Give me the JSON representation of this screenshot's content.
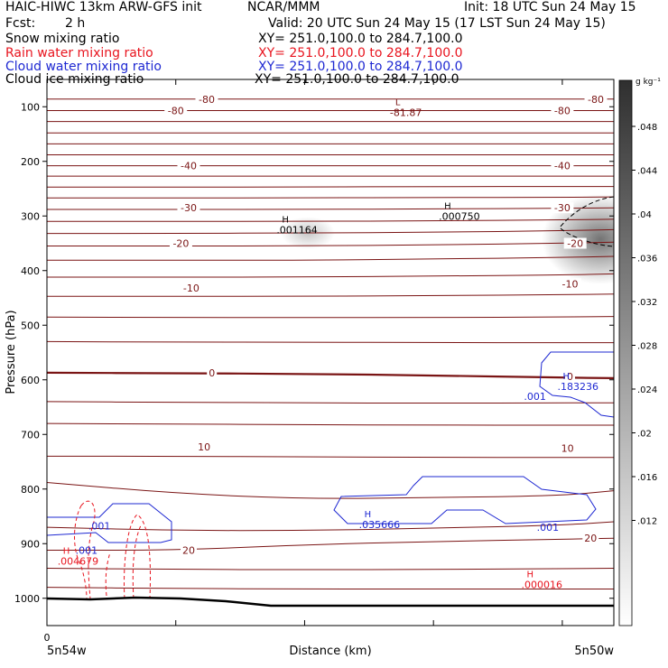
{
  "header": {
    "model": "HAIC-HIWC 13km ARW-GFS init",
    "org": "NCAR/MMM",
    "init": "Init: 18 UTC Sun 24 May 15",
    "fcst_label": "Fcst:",
    "fcst_value": "2 h",
    "valid": "Valid: 20 UTC Sun 24 May 15 (17 LST Sun 24 May 15)",
    "legend": [
      {
        "name": "Snow mixing ratio",
        "xy": "XY= 251.0,100.0 to 284.7,100.0",
        "color": "#000000"
      },
      {
        "name": "Rain water mixing ratio",
        "xy": "XY= 251.0,100.0 to 284.7,100.0",
        "color": "#e8141e"
      },
      {
        "name": "Cloud water mixing ratio",
        "xy": "XY= 251.0,100.0 to 284.7,100.0",
        "color": "#1e28d2"
      },
      {
        "name": "Cloud ice mixing ratio",
        "xy": "XY= 251.0,100.0 to 284.7,100.0",
        "color": "#000000"
      }
    ]
  },
  "colors": {
    "temperature": "#7a1414",
    "rain": "#e8141e",
    "cloud_water": "#1e28d2",
    "ice": "#000000",
    "terrain": "#000000"
  },
  "chart_data": {
    "type": "cross-section",
    "xlabel": "Distance (km)",
    "ylabel": "Pressure (hPa)",
    "x_start_label": "5n54w",
    "x_end_label": "5n50w",
    "x_tick_label": "0",
    "x_range": [
      0,
      220
    ],
    "x_ticks": [
      0,
      50,
      100,
      150,
      200
    ],
    "y_range": [
      1050,
      50
    ],
    "y_ticks": [
      100,
      200,
      300,
      400,
      500,
      600,
      700,
      800,
      900,
      1000
    ],
    "colorbar": {
      "unit": "g kg⁻¹",
      "ticks": [
        ".048",
        ".044",
        ".04",
        ".036",
        ".032",
        ".028",
        ".024",
        ".02",
        ".016",
        ".012"
      ],
      "color_from": "#ffffff",
      "color_to": "#2f2f2f"
    },
    "temperature_contours": [
      {
        "p": 900,
        "x": [
          0,
          50,
          100,
          150,
          200,
          220
        ],
        "pts": [
          788,
          808,
          818,
          816,
          812,
          803
        ]
      },
      {
        "p": 883,
        "x": [
          0,
          50,
          100,
          150,
          200,
          220
        ],
        "pts": [
          870,
          876,
          876,
          872,
          866,
          860
        ]
      },
      {
        "p": 20,
        "x": [
          0,
          50,
          100,
          150,
          200,
          220
        ],
        "pts": [
          912,
          912,
          902,
          896,
          892,
          890
        ]
      },
      {
        "p": 950,
        "x": [
          0,
          50,
          100,
          150,
          200,
          220
        ],
        "pts": [
          945,
          947,
          948,
          947,
          946,
          945
        ]
      },
      {
        "p": 982,
        "x": [
          0,
          50,
          100,
          150,
          200,
          220
        ],
        "pts": [
          980,
          982,
          983,
          983,
          983,
          983
        ]
      },
      {
        "p": 10,
        "x": [
          0,
          50,
          100,
          150,
          200,
          220
        ],
        "pts": [
          740,
          740,
          741,
          742,
          742,
          742
        ]
      },
      {
        "p": 680,
        "x": [
          0,
          50,
          100,
          150,
          200,
          220
        ],
        "pts": [
          680,
          681,
          682,
          683,
          683,
          683
        ]
      },
      {
        "p": 640,
        "x": [
          0,
          50,
          100,
          150,
          200,
          220
        ],
        "pts": [
          640,
          641,
          642,
          643,
          642,
          642
        ]
      },
      {
        "p": 0,
        "x": [
          0,
          50,
          100,
          150,
          200,
          220
        ],
        "pts": [
          587,
          588,
          589,
          592,
          596,
          597
        ]
      },
      {
        "p": 530,
        "x": [
          0,
          50,
          100,
          150,
          200,
          220
        ],
        "pts": [
          530,
          531,
          531,
          532,
          532,
          532
        ]
      },
      {
        "p": 485,
        "x": [
          0,
          50,
          100,
          150,
          200,
          220
        ],
        "pts": [
          485,
          486,
          486,
          486,
          485,
          484
        ]
      },
      {
        "p": -10,
        "x": [
          0,
          50,
          100,
          150,
          200,
          220
        ],
        "pts": [
          447,
          447,
          447,
          446,
          444,
          443
        ]
      },
      {
        "p": 412,
        "x": [
          0,
          50,
          100,
          150,
          200,
          220
        ],
        "pts": [
          412,
          412,
          412,
          410,
          408,
          406
        ]
      },
      {
        "p": -20,
        "x": [
          0,
          50,
          100,
          150,
          200,
          220
        ],
        "pts": [
          381,
          381,
          381,
          379,
          376,
          374
        ]
      },
      {
        "p": 355,
        "x": [
          0,
          50,
          100,
          150,
          200,
          220
        ],
        "pts": [
          355,
          355,
          355,
          353,
          350,
          348
        ]
      },
      {
        "p": -30,
        "x": [
          0,
          50,
          100,
          150,
          200,
          220
        ],
        "pts": [
          332,
          332,
          331,
          330,
          327,
          325
        ]
      },
      {
        "p": 310,
        "x": [
          0,
          50,
          100,
          150,
          200,
          220
        ],
        "pts": [
          310,
          310,
          310,
          309,
          307,
          306
        ]
      },
      {
        "p": 288,
        "x": [
          0,
          50,
          100,
          150,
          200,
          220
        ],
        "pts": [
          288,
          288,
          288,
          287,
          286,
          285
        ]
      },
      {
        "p": -40,
        "x": [
          0,
          50,
          100,
          150,
          200,
          220
        ],
        "pts": [
          267,
          267,
          267,
          266,
          266,
          265
        ]
      },
      {
        "p": 247,
        "x": [
          0,
          50,
          100,
          150,
          200,
          220
        ],
        "pts": [
          247,
          247,
          247,
          246,
          246,
          246
        ]
      },
      {
        "p": 227,
        "x": [
          0,
          50,
          100,
          150,
          200,
          220
        ],
        "pts": [
          227,
          227,
          227,
          227,
          227,
          227
        ]
      },
      {
        "p": 208,
        "x": [
          0,
          50,
          100,
          150,
          200,
          220
        ],
        "pts": [
          208,
          208,
          208,
          208,
          208,
          208
        ]
      },
      {
        "p": 188,
        "x": [
          0,
          50,
          100,
          150,
          200,
          220
        ],
        "pts": [
          188,
          188,
          188,
          188,
          188,
          188
        ]
      },
      {
        "p": 168,
        "x": [
          0,
          50,
          100,
          150,
          200,
          220
        ],
        "pts": [
          168,
          168,
          168,
          168,
          168,
          168
        ]
      },
      {
        "p": 148,
        "x": [
          0,
          50,
          100,
          150,
          200,
          220
        ],
        "pts": [
          148,
          148,
          148,
          148,
          148,
          148
        ]
      },
      {
        "p": -80,
        "x": [
          0,
          50,
          100,
          150,
          200,
          220
        ],
        "pts": [
          127,
          127,
          127,
          127,
          127,
          127
        ]
      },
      {
        "p": 107,
        "x": [
          0,
          50,
          100,
          150,
          200,
          220
        ],
        "pts": [
          107,
          107,
          107,
          107,
          107,
          107
        ]
      },
      {
        "p": 86,
        "x": [
          0,
          50,
          100,
          150,
          200,
          220
        ],
        "pts": [
          86,
          86,
          86,
          86,
          86,
          86
        ]
      }
    ],
    "contour_labels": [
      {
        "text": "-80",
        "x": 62,
        "p": 86
      },
      {
        "text": "-80",
        "x": 50,
        "p": 107
      },
      {
        "text": "-80",
        "x": 213,
        "p": 86
      },
      {
        "text": "-80",
        "x": 200,
        "p": 107
      },
      {
        "text": "-40",
        "x": 55,
        "p": 208
      },
      {
        "text": "-40",
        "x": 200,
        "p": 208
      },
      {
        "text": "-30",
        "x": 55,
        "p": 285
      },
      {
        "text": "-30",
        "x": 200,
        "p": 285
      },
      {
        "text": "-20",
        "x": 52,
        "p": 350
      },
      {
        "text": "-20",
        "x": 205,
        "p": 350
      },
      {
        "text": "-10",
        "x": 56,
        "p": 432
      },
      {
        "text": "-10",
        "x": 203,
        "p": 424
      },
      {
        "text": "0",
        "x": 64,
        "p": 587
      },
      {
        "text": "0",
        "x": 203,
        "p": 594
      },
      {
        "text": "10",
        "x": 61,
        "p": 723
      },
      {
        "text": "10",
        "x": 202,
        "p": 725
      },
      {
        "text": "20",
        "x": 55,
        "p": 912
      },
      {
        "text": "20",
        "x": 211,
        "p": 890
      }
    ],
    "extrema": [
      {
        "marker": "L",
        "value": "-81.87",
        "x": 138,
        "p": 110,
        "color": "#7a1414"
      },
      {
        "marker": "H",
        "value": ".001164",
        "x": 94,
        "p": 325,
        "color": "#000000"
      },
      {
        "marker": "H",
        "value": ".000750",
        "x": 157,
        "p": 300,
        "color": "#000000"
      },
      {
        "marker": "H",
        "value": ".183236",
        "x": 203,
        "p": 612,
        "color": "#1e28d2"
      },
      {
        "marker": "",
        "value": ".001",
        "x": 190,
        "p": 630,
        "color": "#1e28d2"
      },
      {
        "marker": "H",
        "value": ".035666",
        "x": 126,
        "p": 865,
        "color": "#1e28d2"
      },
      {
        "marker": "",
        "value": ".001",
        "x": 195,
        "p": 870,
        "color": "#1e28d2"
      },
      {
        "marker": "",
        "value": ".001",
        "x": 21,
        "p": 867,
        "color": "#1e28d2"
      },
      {
        "marker": "",
        "value": ".001",
        "x": 16,
        "p": 912,
        "color": "#1e28d2"
      },
      {
        "marker": "H",
        "value": ".004679",
        "x": 9,
        "p": 932,
        "color": "#e8141e"
      },
      {
        "marker": "H",
        "value": ".000016",
        "x": 189,
        "p": 975,
        "color": "#e8141e"
      }
    ]
  }
}
